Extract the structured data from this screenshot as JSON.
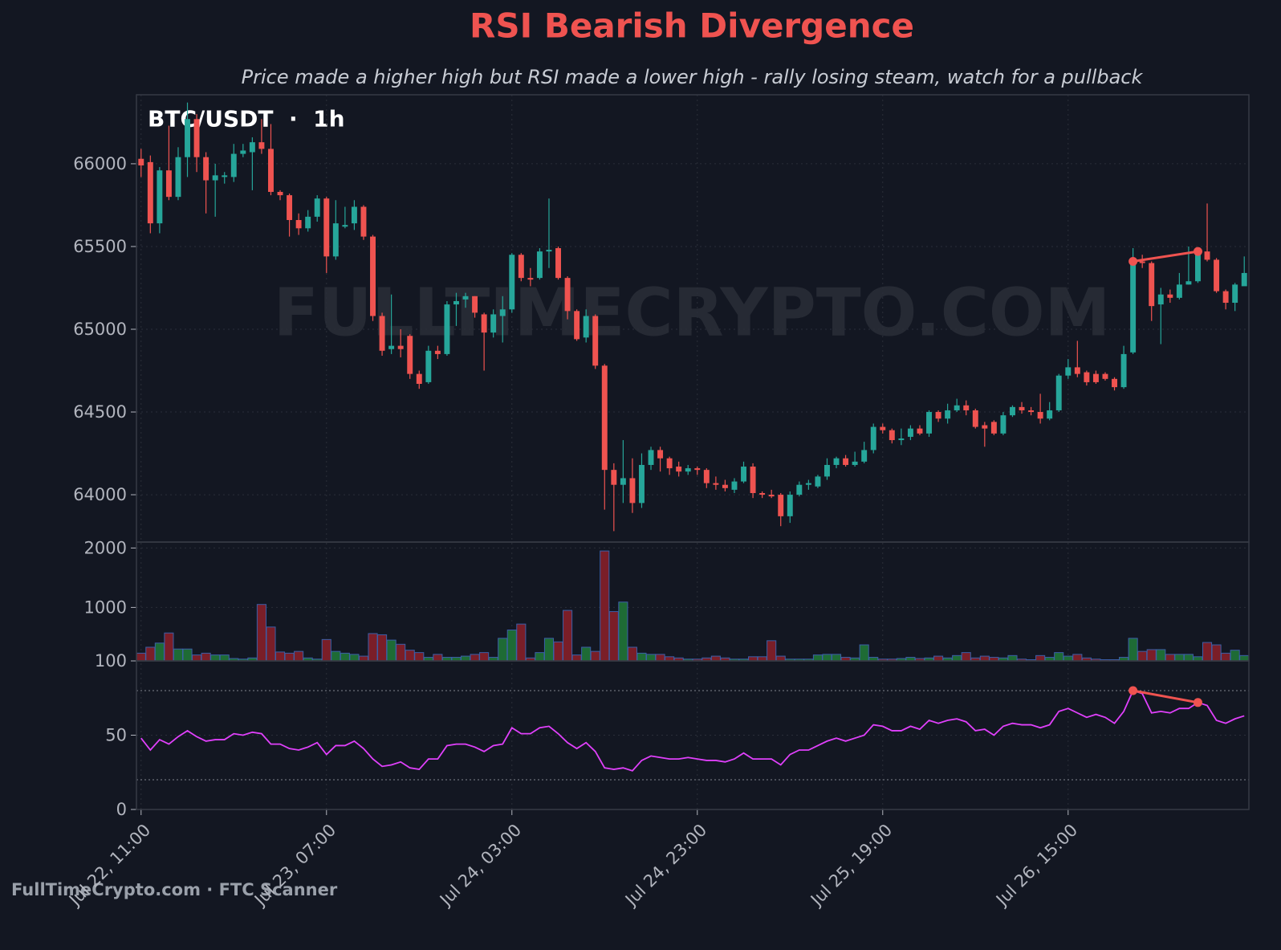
{
  "watermark": "FULLTIMECRYPTO.COM",
  "footer": "FullTimeCrypto.com · FTC Scanner",
  "chart_data": [
    {
      "type": "candlestick",
      "title": "RSI Bearish Divergence",
      "subtitle": "Price made a higher high but RSI made a lower high - rally losing steam, watch for a pullback",
      "label": "BTC/USDT  ·  1h",
      "categories": [
        "Jul 22, 11:00",
        null,
        null,
        null,
        null,
        null,
        null,
        null,
        null,
        null,
        null,
        null,
        null,
        null,
        null,
        null,
        null,
        null,
        null,
        null,
        "Jul 23, 07:00",
        null,
        null,
        null,
        null,
        null,
        null,
        null,
        null,
        null,
        null,
        null,
        null,
        null,
        null,
        null,
        null,
        null,
        null,
        null,
        "Jul 24, 03:00",
        null,
        null,
        null,
        null,
        null,
        null,
        null,
        null,
        null,
        null,
        null,
        null,
        null,
        null,
        null,
        null,
        null,
        null,
        null,
        "Jul 24, 23:00",
        null,
        null,
        null,
        null,
        null,
        null,
        null,
        null,
        null,
        null,
        null,
        null,
        null,
        null,
        null,
        null,
        null,
        null,
        null,
        "Jul 25, 19:00",
        null,
        null,
        null,
        null,
        null,
        null,
        null,
        null,
        null,
        null,
        null,
        null,
        null,
        null,
        null,
        null,
        null,
        null,
        null,
        "Jul 26, 15:00",
        null,
        null,
        null,
        null,
        null,
        null,
        null,
        null,
        null,
        null,
        null,
        null,
        null,
        null,
        null,
        null,
        null,
        null,
        null
      ],
      "open": [
        66030,
        66010,
        65640,
        65960,
        65800,
        66040,
        66270,
        66040,
        65900,
        65920,
        65920,
        66060,
        66070,
        66130,
        66090,
        65830,
        65810,
        65660,
        65610,
        65680,
        65790,
        65440,
        65620,
        65640,
        65740,
        65560,
        65080,
        64880,
        64900,
        64960,
        64730,
        64680,
        64870,
        64850,
        65150,
        65180,
        65200,
        65090,
        64980,
        65080,
        65120,
        65450,
        65310,
        65310,
        65470,
        65490,
        65310,
        65110,
        64950,
        65080,
        64780,
        64150,
        64060,
        64100,
        63950,
        64180,
        64270,
        64220,
        64170,
        64140,
        64160,
        64150,
        64070,
        64060,
        64030,
        64080,
        64170,
        64010,
        64000,
        64000,
        63870,
        64000,
        64060,
        64050,
        64110,
        64180,
        64220,
        64180,
        64200,
        64270,
        64410,
        64390,
        64330,
        64350,
        64400,
        64370,
        64500,
        64460,
        64510,
        64540,
        64510,
        64420,
        64440,
        64370,
        64480,
        64530,
        64510,
        64500,
        64460,
        64510,
        64720,
        64770,
        64740,
        64730,
        64730,
        64700,
        64650,
        64860,
        65410,
        65400,
        65150,
        65210,
        65190,
        65270,
        65290,
        65470,
        65420,
        65230,
        65160,
        65260
      ],
      "high": [
        66090,
        66050,
        65980,
        66230,
        66100,
        66370,
        66300,
        66070,
        66000,
        65950,
        66120,
        66120,
        66160,
        66270,
        66240,
        65840,
        65820,
        65700,
        65720,
        65810,
        65800,
        65780,
        65740,
        65780,
        65750,
        65570,
        65100,
        65210,
        65000,
        64970,
        64750,
        64900,
        64900,
        65170,
        65220,
        65220,
        65200,
        65100,
        65120,
        65200,
        65460,
        65460,
        65370,
        65490,
        65790,
        65500,
        65320,
        65120,
        65120,
        65090,
        64790,
        64190,
        64330,
        64220,
        64250,
        64290,
        64290,
        64230,
        64200,
        64180,
        64170,
        64160,
        64110,
        64090,
        64100,
        64200,
        64190,
        64020,
        64030,
        64010,
        64020,
        64080,
        64090,
        64120,
        64220,
        64230,
        64240,
        64260,
        64320,
        64430,
        64430,
        64400,
        64400,
        64420,
        64420,
        64510,
        64510,
        64550,
        64580,
        64570,
        64520,
        64440,
        64450,
        64500,
        64540,
        64560,
        64530,
        64610,
        64560,
        64730,
        64820,
        64930,
        64750,
        64750,
        64740,
        64710,
        64900,
        65490,
        65450,
        65410,
        65250,
        65240,
        65340,
        65500,
        65480,
        65760,
        65430,
        65240,
        65280,
        65440
      ],
      "low": [
        65920,
        65580,
        65580,
        65780,
        65780,
        65920,
        65950,
        65700,
        65680,
        65880,
        65890,
        66040,
        65840,
        66060,
        65810,
        65780,
        65560,
        65570,
        65590,
        65650,
        65340,
        65420,
        65610,
        65600,
        65540,
        65050,
        64840,
        64850,
        64830,
        64700,
        64640,
        64670,
        64820,
        64840,
        65020,
        65130,
        65070,
        64750,
        64950,
        64920,
        65100,
        65290,
        65260,
        65300,
        65370,
        65300,
        65060,
        64930,
        64920,
        64760,
        63910,
        63780,
        63950,
        63890,
        63920,
        64150,
        64140,
        64120,
        64110,
        64120,
        64120,
        64040,
        64030,
        64020,
        64010,
        64070,
        63980,
        63980,
        63980,
        63810,
        63830,
        63990,
        64030,
        64040,
        64090,
        64160,
        64170,
        64170,
        64190,
        64250,
        64370,
        64310,
        64300,
        64330,
        64360,
        64350,
        64440,
        64430,
        64500,
        64480,
        64400,
        64290,
        64360,
        64360,
        64470,
        64490,
        64480,
        64430,
        64450,
        64500,
        64700,
        64710,
        64660,
        64670,
        64690,
        64630,
        64640,
        64850,
        65370,
        65050,
        64910,
        65160,
        65180,
        65270,
        65280,
        65410,
        65220,
        65120,
        65110,
        65270
      ],
      "close": [
        65990,
        65640,
        65960,
        65800,
        66040,
        66270,
        66040,
        65900,
        65930,
        65930,
        66060,
        66080,
        66130,
        66090,
        65830,
        65810,
        65660,
        65610,
        65680,
        65790,
        65440,
        65640,
        65630,
        65740,
        65560,
        65080,
        64870,
        64900,
        64880,
        64730,
        64670,
        64870,
        64850,
        65150,
        65170,
        65200,
        65100,
        64980,
        65090,
        65120,
        65450,
        65310,
        65300,
        65470,
        65480,
        65310,
        65110,
        64940,
        65080,
        64780,
        64150,
        64060,
        64100,
        63950,
        64180,
        64270,
        64220,
        64160,
        64140,
        64160,
        64150,
        64070,
        64060,
        64040,
        64080,
        64170,
        64010,
        64000,
        63990,
        63870,
        64000,
        64060,
        64070,
        64110,
        64180,
        64220,
        64180,
        64200,
        64270,
        64410,
        64390,
        64330,
        64340,
        64400,
        64370,
        64500,
        64460,
        64510,
        64540,
        64510,
        64410,
        64400,
        64370,
        64480,
        64530,
        64510,
        64500,
        64460,
        64510,
        64720,
        64770,
        64730,
        64680,
        64680,
        64700,
        64650,
        64850,
        65410,
        65400,
        65140,
        65210,
        65190,
        65270,
        65290,
        65470,
        65420,
        65230,
        65160,
        65270,
        65340
      ],
      "up_color": "#26a69a",
      "down_color": "#ef5350",
      "ylim": [
        63714,
        66417
      ],
      "yticks": [
        64000,
        64500,
        65000,
        65500,
        66000
      ],
      "grid": true,
      "divergence": {
        "x": [
          107,
          114
        ],
        "values": [
          65410,
          65470
        ],
        "color": "#ef5350"
      }
    },
    {
      "type": "bar",
      "values": [
        230,
        330,
        400,
        570,
        300,
        300,
        200,
        230,
        200,
        200,
        140,
        130,
        150,
        1050,
        670,
        250,
        230,
        260,
        150,
        130,
        460,
        260,
        230,
        210,
        180,
        560,
        540,
        450,
        380,
        280,
        240,
        160,
        210,
        160,
        160,
        180,
        210,
        240,
        160,
        480,
        620,
        720,
        150,
        240,
        480,
        420,
        950,
        200,
        330,
        260,
        1950,
        930,
        1090,
        330,
        230,
        210,
        210,
        170,
        150,
        130,
        130,
        150,
        180,
        150,
        130,
        130,
        170,
        170,
        440,
        180,
        130,
        130,
        130,
        200,
        210,
        210,
        160,
        150,
        370,
        160,
        130,
        130,
        140,
        160,
        140,
        150,
        180,
        150,
        190,
        240,
        150,
        180,
        160,
        150,
        190,
        130,
        120,
        190,
        160,
        240,
        180,
        210,
        150,
        130,
        120,
        120,
        160,
        480,
        260,
        290,
        290,
        210,
        210,
        210,
        170,
        410,
        370,
        230,
        280,
        190
      ],
      "up_color": "#1e6b35",
      "down_color": "#7a1e28",
      "edge_color": "#3b5fa8",
      "ylim": [
        100,
        2100
      ],
      "yticks": [
        100,
        1000,
        2000
      ],
      "grid": true
    },
    {
      "type": "line",
      "values": [
        48,
        40,
        47,
        44,
        49,
        53,
        49,
        46,
        47,
        47,
        51,
        50,
        52,
        51,
        44,
        44,
        41,
        40,
        42,
        45,
        37,
        43,
        43,
        46,
        41,
        34,
        29,
        30,
        32,
        28,
        27,
        34,
        34,
        43,
        44,
        44,
        42,
        39,
        43,
        44,
        55,
        51,
        51,
        55,
        56,
        51,
        45,
        41,
        45,
        39,
        28,
        27,
        28,
        26,
        33,
        36,
        35,
        34,
        34,
        35,
        34,
        33,
        33,
        32,
        34,
        38,
        34,
        34,
        34,
        30,
        37,
        40,
        40,
        43,
        46,
        48,
        46,
        48,
        50,
        57,
        56,
        53,
        53,
        56,
        54,
        60,
        58,
        60,
        61,
        59,
        53,
        54,
        50,
        56,
        58,
        57,
        57,
        55,
        57,
        66,
        68,
        65,
        62,
        64,
        62,
        58,
        66,
        80,
        78,
        65,
        66,
        65,
        68,
        68,
        72,
        70,
        60,
        58,
        61,
        63
      ],
      "color": "#e040fb",
      "ylim": [
        0,
        100
      ],
      "yticks": [
        0,
        50
      ],
      "levels": [
        20,
        80
      ],
      "grid": true,
      "divergence": {
        "x": [
          107,
          114
        ],
        "values": [
          80,
          72
        ],
        "color": "#ef5350"
      }
    }
  ]
}
